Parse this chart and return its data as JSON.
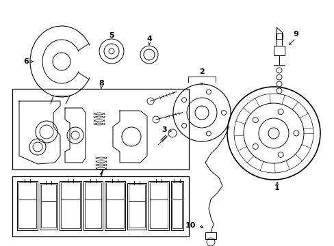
{
  "background_color": "#ffffff",
  "fig_width": 4.89,
  "fig_height": 3.6,
  "dpi": 100,
  "image_data": ""
}
